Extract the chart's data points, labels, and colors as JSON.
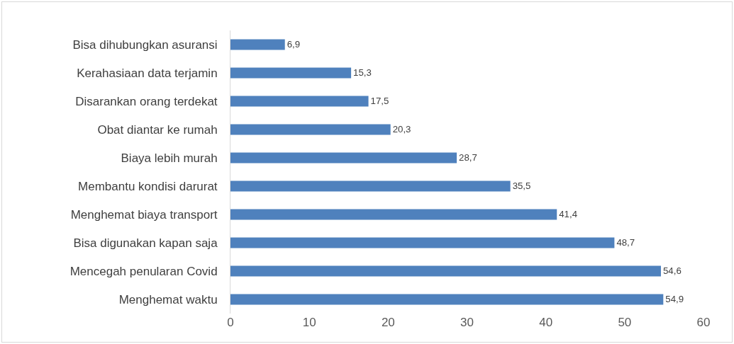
{
  "chart_data": {
    "type": "bar",
    "orientation": "horizontal",
    "categories": [
      "Bisa dihubungkan asuransi",
      "Kerahasiaan data terjamin",
      "Disarankan orang terdekat",
      "Obat diantar ke rumah",
      "Biaya lebih murah",
      "Membantu kondisi darurat",
      "Menghemat biaya transport",
      "Bisa digunakan kapan saja",
      "Mencegah penularan Covid",
      "Menghemat waktu"
    ],
    "values": [
      6.9,
      15.3,
      17.5,
      20.3,
      28.7,
      35.5,
      41.4,
      48.7,
      54.6,
      54.9
    ],
    "value_labels": [
      "6,9",
      "15,3",
      "17,5",
      "20,3",
      "28,7",
      "35,5",
      "41,4",
      "48,7",
      "54,6",
      "54,9"
    ],
    "color": "#4f81bd",
    "xlim": [
      0,
      60
    ],
    "xticks": [
      0,
      10,
      20,
      30,
      40,
      50,
      60
    ],
    "grid": false,
    "legend": false
  }
}
